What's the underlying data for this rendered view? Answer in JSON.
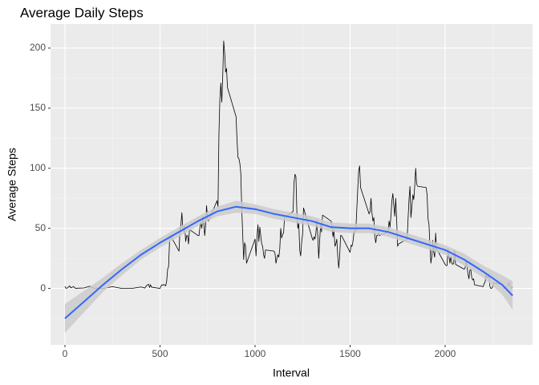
{
  "chart_data": {
    "type": "line",
    "title": "Average Daily Steps",
    "x_label": "Interval",
    "y_label": "Average Steps",
    "xlim": [
      -76,
      2460
    ],
    "ylim": [
      -47,
      220
    ],
    "xticks": [
      0,
      500,
      1000,
      1500,
      2000
    ],
    "yticks": [
      0,
      50,
      100,
      150,
      200
    ],
    "grid": true,
    "series": [
      {
        "color": "#000000",
        "x": [
          0,
          5,
          10,
          25,
          30,
          45,
          55,
          100,
          130,
          150,
          200,
          250,
          300,
          350,
          400,
          420,
          430,
          440,
          445,
          450,
          455,
          500,
          505,
          510,
          515,
          520,
          525,
          530,
          535,
          540,
          545,
          550,
          555,
          600,
          605,
          610,
          615,
          620,
          625,
          630,
          635,
          640,
          645,
          650,
          655,
          700,
          705,
          710,
          715,
          720,
          725,
          730,
          735,
          740,
          745,
          750,
          755,
          800,
          805,
          810,
          815,
          820,
          825,
          830,
          835,
          840,
          845,
          850,
          855,
          900,
          905,
          910,
          915,
          920,
          925,
          930,
          935,
          940,
          945,
          950,
          955,
          1000,
          1005,
          1010,
          1015,
          1020,
          1025,
          1030,
          1035,
          1040,
          1045,
          1050,
          1055,
          1100,
          1105,
          1110,
          1115,
          1120,
          1125,
          1130,
          1135,
          1140,
          1145,
          1150,
          1155,
          1200,
          1205,
          1210,
          1215,
          1220,
          1225,
          1230,
          1235,
          1240,
          1245,
          1250,
          1255,
          1300,
          1305,
          1310,
          1315,
          1320,
          1325,
          1330,
          1335,
          1340,
          1345,
          1350,
          1355,
          1400,
          1405,
          1410,
          1415,
          1420,
          1425,
          1430,
          1435,
          1440,
          1445,
          1450,
          1455,
          1500,
          1505,
          1510,
          1515,
          1520,
          1525,
          1530,
          1535,
          1540,
          1545,
          1550,
          1555,
          1600,
          1605,
          1610,
          1615,
          1620,
          1625,
          1630,
          1635,
          1640,
          1645,
          1650,
          1655,
          1700,
          1705,
          1710,
          1715,
          1720,
          1725,
          1730,
          1735,
          1740,
          1745,
          1750,
          1755,
          1800,
          1805,
          1810,
          1815,
          1820,
          1825,
          1830,
          1835,
          1840,
          1845,
          1850,
          1855,
          1900,
          1905,
          1910,
          1915,
          1920,
          1925,
          1930,
          1935,
          1940,
          1945,
          1950,
          1955,
          2000,
          2005,
          2010,
          2015,
          2020,
          2025,
          2030,
          2035,
          2040,
          2045,
          2050,
          2055,
          2100,
          2105,
          2110,
          2115,
          2120,
          2125,
          2130,
          2135,
          2140,
          2145,
          2150,
          2155,
          2200,
          2205,
          2210,
          2215,
          2220,
          2225,
          2230,
          2235,
          2240,
          2245,
          2250,
          2255,
          2300,
          2305,
          2310,
          2315,
          2320,
          2325,
          2330,
          2335,
          2340,
          2345,
          2350,
          2355
        ],
        "values": [
          1.7,
          0.3,
          0.1,
          2.1,
          0.5,
          1.5,
          0.1,
          0.4,
          1.8,
          0.3,
          0,
          1.5,
          0,
          0,
          1.2,
          0.3,
          2.5,
          3.5,
          0.8,
          3.1,
          1.1,
          0,
          2,
          3,
          2.5,
          3.3,
          2.9,
          2.1,
          6,
          16,
          18,
          39,
          44,
          31,
          49,
          53,
          63,
          50,
          47,
          52,
          39,
          44,
          44,
          37,
          49,
          44,
          44,
          51,
          55,
          50,
          60,
          56,
          44,
          52,
          69,
          58,
          56,
          73,
          68,
          129,
          158,
          171,
          155,
          177,
          206,
          196,
          180,
          183,
          167,
          143,
          124,
          109,
          108,
          104,
          96,
          66,
          45,
          24,
          38,
          35,
          21,
          41,
          27,
          42,
          53,
          39,
          51,
          44,
          37,
          35,
          28,
          25,
          32,
          31,
          29,
          21,
          25,
          28,
          26,
          33,
          50,
          42,
          45,
          46,
          59,
          64,
          88,
          95,
          93,
          63,
          50,
          54,
          32,
          27,
          38,
          45,
          67,
          42,
          40,
          43,
          41,
          46,
          57,
          43,
          25,
          40,
          54,
          47,
          61,
          56,
          52,
          43,
          49,
          35,
          37,
          41,
          27,
          17,
          26,
          44,
          44,
          30,
          36,
          35,
          39,
          46,
          48,
          48,
          65,
          82,
          98,
          102,
          84,
          62,
          64,
          75,
          63,
          56,
          59,
          43,
          38,
          44,
          44,
          46,
          44,
          47,
          56,
          51,
          61,
          73,
          79,
          69,
          60,
          75,
          57,
          35,
          37,
          41,
          58,
          74,
          85,
          59,
          68,
          78,
          74,
          85,
          100,
          87,
          85,
          84,
          78,
          58,
          53,
          36,
          21,
          27,
          40,
          30,
          26,
          46,
          33,
          20,
          19,
          19,
          33,
          27,
          21,
          27,
          21,
          20,
          21,
          32,
          20,
          16,
          17,
          23,
          19,
          12,
          8,
          15,
          16,
          9,
          7,
          8,
          3,
          1.5,
          4,
          5,
          11,
          9,
          10,
          12,
          2,
          0,
          0.1,
          1.6,
          4.6,
          3.3,
          3,
          0,
          0.8,
          1,
          1.6,
          2.6,
          4.7,
          3.3,
          0.6,
          0.2,
          1.1
        ]
      },
      {
        "color": "#3366ff",
        "band_color": "#cbcbcb",
        "x": [
          0,
          100,
          200,
          300,
          400,
          500,
          600,
          700,
          800,
          900,
          1000,
          1100,
          1200,
          1300,
          1400,
          1500,
          1600,
          1700,
          1800,
          1900,
          2000,
          2100,
          2200,
          2300,
          2355
        ],
        "values": [
          -25,
          -11,
          3,
          16,
          28,
          38,
          47,
          56,
          64,
          68,
          66,
          62,
          59,
          56,
          51,
          50,
          50,
          47,
          42,
          37,
          32,
          24,
          14,
          3,
          -6
        ],
        "lower": [
          -37,
          -20,
          -3,
          11,
          24,
          34,
          43,
          52,
          60,
          63,
          62,
          58,
          55,
          52,
          47,
          46,
          46,
          43,
          38,
          33,
          28,
          19,
          9,
          -5,
          -18
        ],
        "upper": [
          -13,
          -2,
          9,
          21,
          32,
          42,
          51,
          60,
          68,
          73,
          70,
          66,
          63,
          60,
          55,
          54,
          54,
          51,
          46,
          41,
          36,
          29,
          19,
          11,
          6
        ]
      }
    ]
  }
}
